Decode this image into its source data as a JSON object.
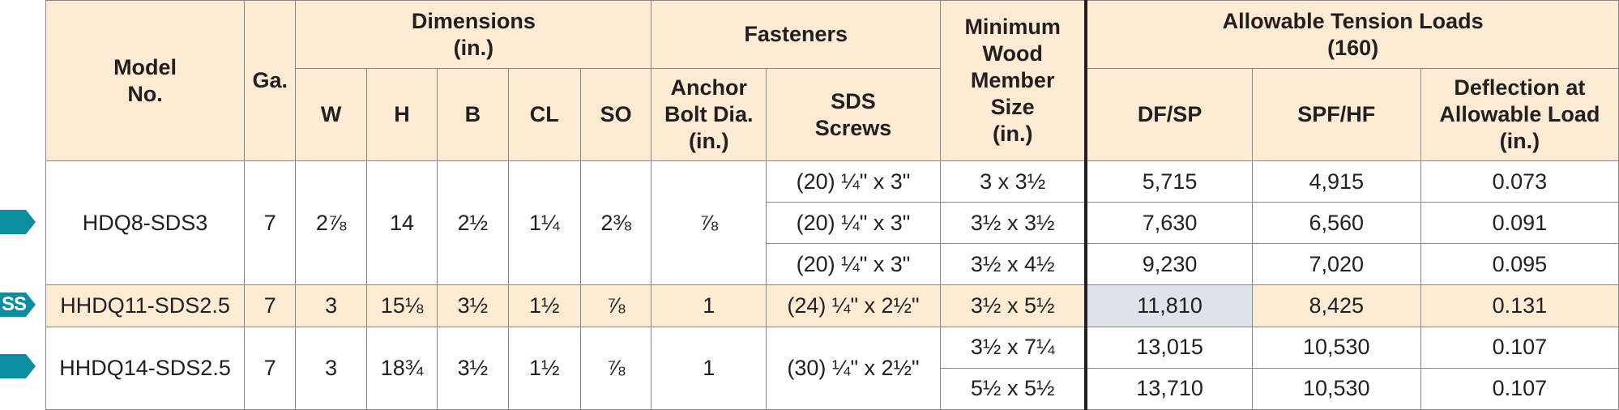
{
  "header": {
    "model_no": "Model\nNo.",
    "ga": "Ga.",
    "dimensions": "Dimensions\n(in.)",
    "dim_cols": [
      "W",
      "H",
      "B",
      "CL",
      "SO"
    ],
    "fasteners": "Fasteners",
    "anchor_bolt": "Anchor\nBolt Dia.\n(in.)",
    "sds_screws": "SDS\nScrews",
    "min_wood": "Minimum\nWood\nMember\nSize\n(in.)",
    "allowable": "Allowable Tension Loads\n(160)",
    "dfsp": "DF/SP",
    "spfhf": "SPF/HF",
    "deflection": "Deflection at\nAllowable Load\n(in.)"
  },
  "markers": [
    "arrow-marker",
    "ss-marker",
    "arrow-marker"
  ],
  "marker_text": {
    "ss": "SS"
  },
  "rows": [
    {
      "model": "HDQ8-SDS3",
      "ga": "7",
      "w": "2⅞",
      "h": "14",
      "b": "2½",
      "cl": "1¼",
      "so": "2⅜",
      "anchor": "⅞",
      "sub": [
        {
          "sds": "(20) ¼\" x 3\"",
          "wood": "3 x 3½",
          "dfsp": "5,715",
          "spfhf": "4,915",
          "spfhf_red": true,
          "defl": "0.073",
          "defl_red": true
        },
        {
          "sds": "(20) ¼\" x 3\"",
          "wood": "3½ x 3½",
          "dfsp": "7,630",
          "spfhf": "6,560",
          "spfhf_red": true,
          "defl": "0.091",
          "defl_red": false
        },
        {
          "sds": "(20) ¼\" x 3\"",
          "wood": "3½ x 4½",
          "dfsp": "9,230",
          "spfhf": "7,020",
          "spfhf_red": true,
          "defl": "0.095",
          "defl_red": false
        }
      ]
    },
    {
      "model": "HHDQ11-SDS2.5",
      "ga": "7",
      "w": "3",
      "h": "15⅛",
      "b": "3½",
      "cl": "1½",
      "so": "⅞",
      "anchor": "1",
      "sub": [
        {
          "sds": "(24) ¼\" x 2½\"",
          "wood": "3½ x 5½",
          "dfsp": "11,810",
          "spfhf": "8,425",
          "spfhf_red": false,
          "defl": "0.131",
          "defl_red": false
        }
      ]
    },
    {
      "model": "HHDQ14-SDS2.5",
      "ga": "7",
      "w": "3",
      "h": "18¾",
      "b": "3½",
      "cl": "1½",
      "so": "⅞",
      "anchor": "1",
      "sds": "(30) ¼\" x 2½\"",
      "sub": [
        {
          "wood": "3½ x 7¼",
          "dfsp": "13,015",
          "spfhf": "10,530",
          "spfhf_red": true,
          "defl": "0.107",
          "defl_red": false
        },
        {
          "wood": "5½ x 5½",
          "dfsp": "13,710",
          "spfhf": "10,530",
          "spfhf_red": false,
          "defl": "0.107",
          "defl_red": false
        }
      ]
    }
  ],
  "colors": {
    "teal": "#0a8fa0",
    "header_bg": "#fdebd3",
    "dfsp_bg": "#dce3eb",
    "red_text": "#e8502e"
  }
}
